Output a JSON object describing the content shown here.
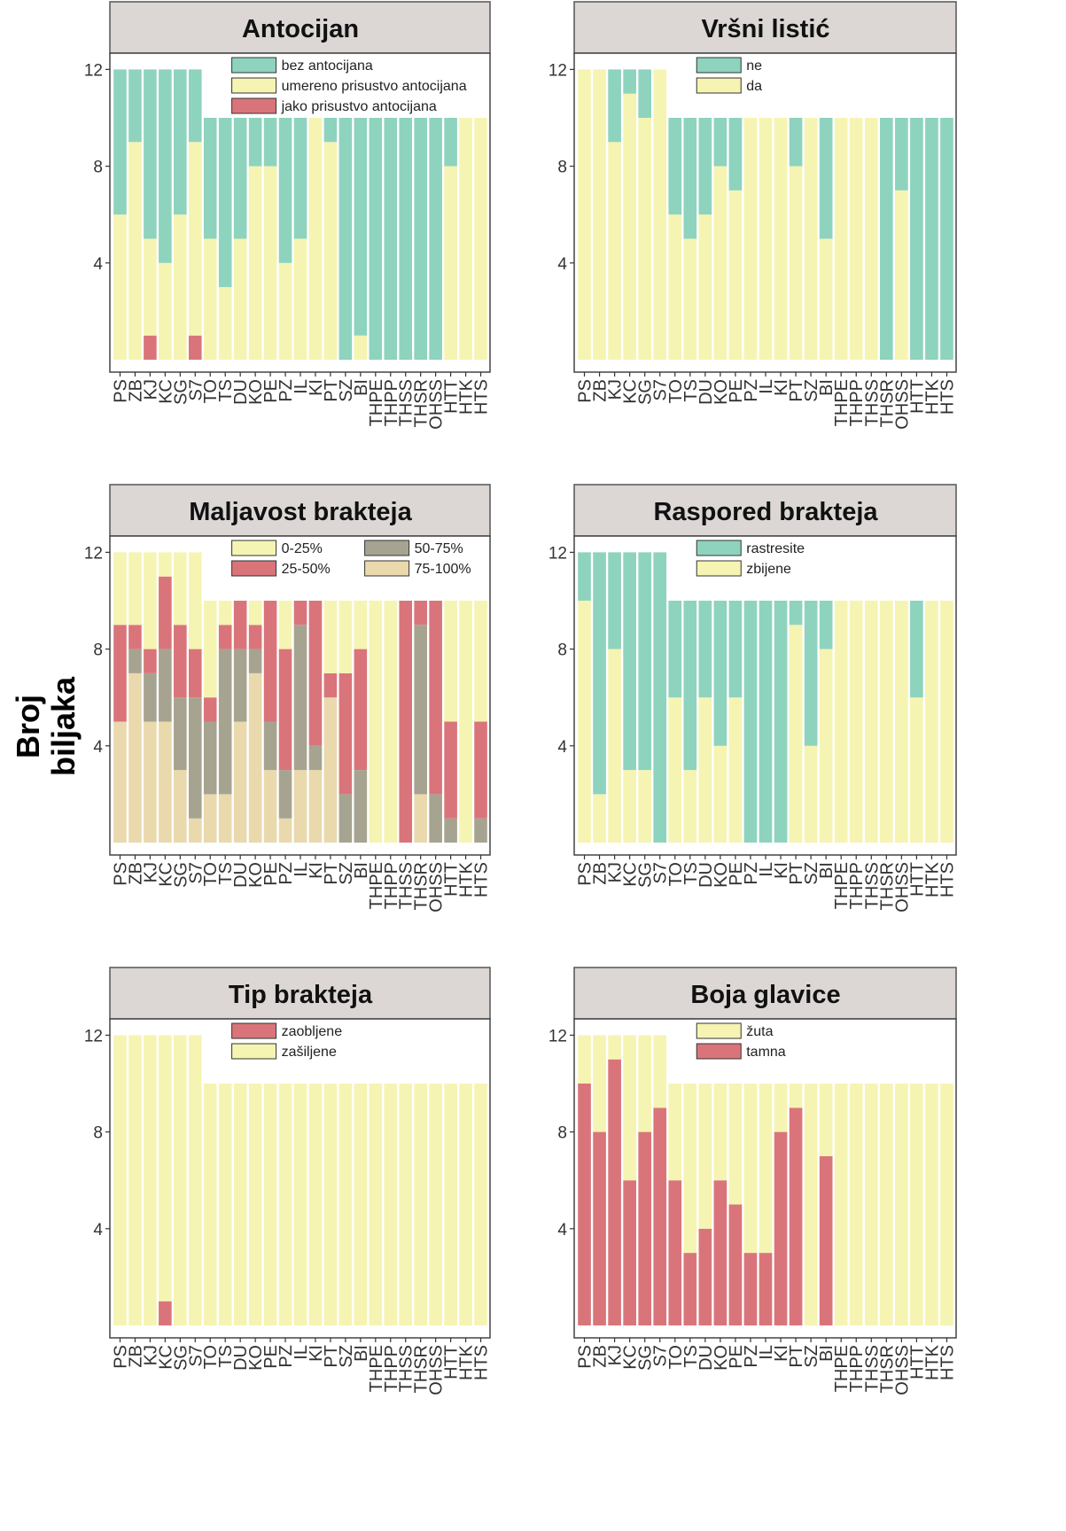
{
  "figure": {
    "ylabel": "Broj biljaka"
  },
  "colors": {
    "teal": "#8ed3be",
    "yellow": "#f6f4b2",
    "red": "#d9757a",
    "grey": "#a6a491",
    "tan": "#e9d9ad",
    "strip": "#dcd7d5"
  },
  "chart_data": [
    {
      "type": "bar",
      "stacked": true,
      "title": "Antocijan",
      "categories": [
        "PS",
        "ZB",
        "KJ",
        "KC",
        "SG",
        "S7",
        "TO",
        "TS",
        "DU",
        "KO",
        "PE",
        "PZ",
        "IL",
        "KI",
        "PT",
        "SZ",
        "BI",
        "THPE",
        "THPP",
        "THSS",
        "THSR",
        "OHSS",
        "HTT",
        "HTK",
        "HTS"
      ],
      "ylim": [
        0,
        12
      ],
      "yticks": [
        4,
        8,
        12
      ],
      "grid": false,
      "legend_position": "top",
      "series": [
        {
          "name": "jako prisustvo antocijana",
          "color": "#d9757a",
          "values": [
            0,
            0,
            1,
            0,
            0,
            1,
            0,
            0,
            0,
            0,
            0,
            0,
            0,
            0,
            0,
            0,
            0,
            0,
            0,
            0,
            0,
            0,
            0,
            0,
            0
          ]
        },
        {
          "name": "umereno prisustvo antocijana",
          "color": "#f6f4b2",
          "values": [
            6,
            9,
            4,
            4,
            6,
            8,
            5,
            3,
            5,
            8,
            8,
            4,
            5,
            10,
            9,
            0,
            1,
            0,
            0,
            0,
            0,
            0,
            8,
            10,
            10
          ]
        },
        {
          "name": "bez antocijana",
          "color": "#8ed3be",
          "values": [
            6,
            3,
            7,
            8,
            6,
            3,
            5,
            7,
            5,
            2,
            2,
            6,
            5,
            0,
            1,
            10,
            9,
            10,
            10,
            10,
            10,
            10,
            2,
            0,
            0
          ]
        }
      ]
    },
    {
      "type": "bar",
      "stacked": true,
      "title": "Vršni listić",
      "categories": [
        "PS",
        "ZB",
        "KJ",
        "KC",
        "SG",
        "S7",
        "TO",
        "TS",
        "DU",
        "KO",
        "PE",
        "PZ",
        "IL",
        "KI",
        "PT",
        "SZ",
        "BI",
        "THPE",
        "THPP",
        "THSS",
        "THSR",
        "OHSS",
        "HTT",
        "HTK",
        "HTS"
      ],
      "ylim": [
        0,
        12
      ],
      "yticks": [
        4,
        8,
        12
      ],
      "grid": false,
      "legend_position": "top",
      "series": [
        {
          "name": "da",
          "color": "#f6f4b2",
          "values": [
            12,
            12,
            9,
            11,
            10,
            12,
            6,
            5,
            6,
            8,
            7,
            10,
            10,
            10,
            8,
            10,
            5,
            10,
            10,
            10,
            0,
            7,
            0,
            0,
            0
          ]
        },
        {
          "name": "ne",
          "color": "#8ed3be",
          "values": [
            0,
            0,
            3,
            1,
            2,
            0,
            4,
            5,
            4,
            2,
            3,
            0,
            0,
            0,
            2,
            0,
            5,
            0,
            0,
            0,
            10,
            3,
            10,
            10,
            10
          ]
        }
      ]
    },
    {
      "type": "bar",
      "stacked": true,
      "title": "Maljavost brakteja",
      "categories": [
        "PS",
        "ZB",
        "KJ",
        "KC",
        "SG",
        "S7",
        "TO",
        "TS",
        "DU",
        "KO",
        "PE",
        "PZ",
        "IL",
        "KI",
        "PT",
        "SZ",
        "BI",
        "THPE",
        "THPP",
        "THSS",
        "THSR",
        "OHSS",
        "HTT",
        "HTK",
        "HTS"
      ],
      "ylim": [
        0,
        12
      ],
      "yticks": [
        4,
        8,
        12
      ],
      "grid": false,
      "legend_position": "top",
      "series": [
        {
          "name": "75-100%",
          "color": "#e9d9ad",
          "values": [
            5,
            7,
            5,
            5,
            3,
            1,
            2,
            2,
            5,
            7,
            3,
            1,
            3,
            3,
            6,
            0,
            0,
            0,
            0,
            0,
            2,
            0,
            0,
            0,
            0
          ]
        },
        {
          "name": "50-75%",
          "color": "#a6a491",
          "values": [
            0,
            1,
            2,
            3,
            3,
            5,
            3,
            6,
            3,
            1,
            2,
            2,
            6,
            1,
            0,
            2,
            3,
            0,
            0,
            0,
            7,
            2,
            1,
            0,
            1
          ]
        },
        {
          "name": "25-50%",
          "color": "#d9757a",
          "values": [
            4,
            1,
            1,
            3,
            3,
            2,
            1,
            1,
            2,
            1,
            5,
            5,
            1,
            6,
            1,
            5,
            5,
            0,
            0,
            10,
            1,
            8,
            4,
            0,
            4
          ]
        },
        {
          "name": "0-25%",
          "color": "#f6f4b2",
          "values": [
            3,
            3,
            4,
            1,
            3,
            4,
            4,
            1,
            0,
            1,
            0,
            2,
            0,
            0,
            3,
            3,
            2,
            10,
            10,
            0,
            0,
            0,
            5,
            10,
            5
          ]
        }
      ]
    },
    {
      "type": "bar",
      "stacked": true,
      "title": "Raspored brakteja",
      "categories": [
        "PS",
        "ZB",
        "KJ",
        "KC",
        "SG",
        "S7",
        "TO",
        "TS",
        "DU",
        "KO",
        "PE",
        "PZ",
        "IL",
        "KI",
        "PT",
        "SZ",
        "BI",
        "THPE",
        "THPP",
        "THSS",
        "THSR",
        "OHSS",
        "HTT",
        "HTK",
        "HTS"
      ],
      "ylim": [
        0,
        12
      ],
      "yticks": [
        4,
        8,
        12
      ],
      "grid": false,
      "legend_position": "top",
      "series": [
        {
          "name": "zbijene",
          "color": "#f6f4b2",
          "values": [
            10,
            2,
            8,
            3,
            3,
            0,
            6,
            3,
            6,
            4,
            6,
            0,
            0,
            0,
            9,
            4,
            8,
            10,
            10,
            10,
            10,
            10,
            6,
            10,
            10
          ]
        },
        {
          "name": "rastresite",
          "color": "#8ed3be",
          "values": [
            2,
            10,
            4,
            9,
            9,
            12,
            4,
            7,
            4,
            6,
            4,
            10,
            10,
            10,
            1,
            6,
            2,
            0,
            0,
            0,
            0,
            0,
            4,
            0,
            0
          ]
        }
      ]
    },
    {
      "type": "bar",
      "stacked": true,
      "title": "Tip brakteja",
      "categories": [
        "PS",
        "ZB",
        "KJ",
        "KC",
        "SG",
        "S7",
        "TO",
        "TS",
        "DU",
        "KO",
        "PE",
        "PZ",
        "IL",
        "KI",
        "PT",
        "SZ",
        "BI",
        "THPE",
        "THPP",
        "THSS",
        "THSR",
        "OHSS",
        "HTT",
        "HTK",
        "HTS"
      ],
      "ylim": [
        0,
        12
      ],
      "yticks": [
        4,
        8,
        12
      ],
      "grid": false,
      "legend_position": "top",
      "series": [
        {
          "name": "zaobljene",
          "color": "#d9757a",
          "values": [
            0,
            0,
            0,
            1,
            0,
            0,
            0,
            0,
            0,
            0,
            0,
            0,
            0,
            0,
            0,
            0,
            0,
            0,
            0,
            0,
            0,
            0,
            0,
            0,
            0
          ]
        },
        {
          "name": "zašiljene",
          "color": "#f6f4b2",
          "values": [
            12,
            12,
            12,
            11,
            12,
            12,
            10,
            10,
            10,
            10,
            10,
            10,
            10,
            10,
            10,
            10,
            10,
            10,
            10,
            10,
            10,
            10,
            10,
            10,
            10
          ]
        }
      ]
    },
    {
      "type": "bar",
      "stacked": true,
      "title": "Boja glavice",
      "categories": [
        "PS",
        "ZB",
        "KJ",
        "KC",
        "SG",
        "S7",
        "TO",
        "TS",
        "DU",
        "KO",
        "PE",
        "PZ",
        "IL",
        "KI",
        "PT",
        "SZ",
        "BI",
        "THPE",
        "THPP",
        "THSS",
        "THSR",
        "OHSS",
        "HTT",
        "HTK",
        "HTS"
      ],
      "ylim": [
        0,
        12
      ],
      "yticks": [
        4,
        8,
        12
      ],
      "grid": false,
      "legend_position": "top",
      "series": [
        {
          "name": "tamna",
          "color": "#d9757a",
          "values": [
            10,
            8,
            11,
            6,
            8,
            9,
            6,
            3,
            4,
            6,
            5,
            3,
            3,
            8,
            9,
            0,
            7,
            0,
            0,
            0,
            0,
            0,
            0,
            0,
            0
          ]
        },
        {
          "name": "žuta",
          "color": "#f6f4b2",
          "values": [
            2,
            4,
            1,
            6,
            4,
            3,
            4,
            7,
            6,
            4,
            5,
            7,
            7,
            2,
            1,
            10,
            3,
            10,
            10,
            10,
            10,
            10,
            10,
            10,
            10
          ]
        }
      ]
    }
  ],
  "legends": [
    {
      "columns": 1,
      "order": [
        2,
        1,
        0
      ]
    },
    {
      "columns": 1,
      "order": [
        1,
        0
      ]
    },
    {
      "columns": 2,
      "order": [
        3,
        2,
        1,
        0
      ]
    },
    {
      "columns": 1,
      "order": [
        1,
        0
      ]
    },
    {
      "columns": 1,
      "order": [
        0,
        1
      ]
    },
    {
      "columns": 1,
      "order": [
        1,
        0
      ]
    }
  ]
}
